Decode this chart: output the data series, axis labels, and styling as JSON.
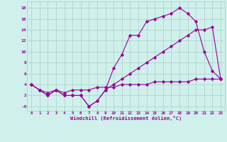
{
  "xlabel": "Windchill (Refroidissement éolien,°C)",
  "bg_color": "#cff0eb",
  "grid_color": "#aacfc9",
  "line_color": "#990099",
  "x_line1": [
    0,
    1,
    2,
    3,
    4,
    5,
    6,
    7,
    8,
    9,
    10,
    11,
    12,
    13,
    14,
    15,
    16,
    17,
    18,
    19,
    20,
    21,
    22,
    23
  ],
  "y_line1": [
    4,
    3,
    2,
    3,
    2,
    2,
    2,
    0,
    1,
    3,
    7,
    9.5,
    13,
    13,
    15.5,
    16,
    16.5,
    17,
    18,
    17,
    15.5,
    10,
    6.5,
    5
  ],
  "x_line2": [
    0,
    1,
    2,
    3,
    4,
    5,
    6,
    7,
    8,
    9,
    10,
    11,
    12,
    13,
    14,
    15,
    16,
    17,
    18,
    19,
    20,
    21,
    22,
    23
  ],
  "y_line2": [
    4,
    3,
    2,
    3,
    2,
    2,
    2,
    0,
    1,
    3,
    4,
    5,
    6,
    7,
    8,
    9,
    10,
    11,
    12,
    13,
    14,
    14,
    14.5,
    5
  ],
  "x_line3": [
    0,
    1,
    2,
    3,
    4,
    5,
    6,
    7,
    8,
    9,
    10,
    11,
    12,
    13,
    14,
    15,
    16,
    17,
    18,
    19,
    20,
    21,
    22,
    23
  ],
  "y_line3": [
    4,
    3,
    2.5,
    3,
    2.5,
    3,
    3,
    3,
    3.5,
    3.5,
    3.5,
    4,
    4,
    4,
    4,
    4.5,
    4.5,
    4.5,
    4.5,
    4.5,
    5,
    5,
    5,
    5
  ],
  "xlim": [
    -0.5,
    23.5
  ],
  "ylim": [
    -0.8,
    19.2
  ],
  "yticks": [
    0,
    2,
    4,
    6,
    8,
    10,
    12,
    14,
    16,
    18
  ],
  "ytick_labels": [
    "-0",
    "2",
    "4",
    "6",
    "8",
    "10",
    "12",
    "14",
    "16",
    "18"
  ],
  "xticks": [
    0,
    1,
    2,
    3,
    4,
    5,
    6,
    7,
    8,
    9,
    10,
    11,
    12,
    13,
    14,
    15,
    16,
    17,
    18,
    19,
    20,
    21,
    22,
    23
  ]
}
